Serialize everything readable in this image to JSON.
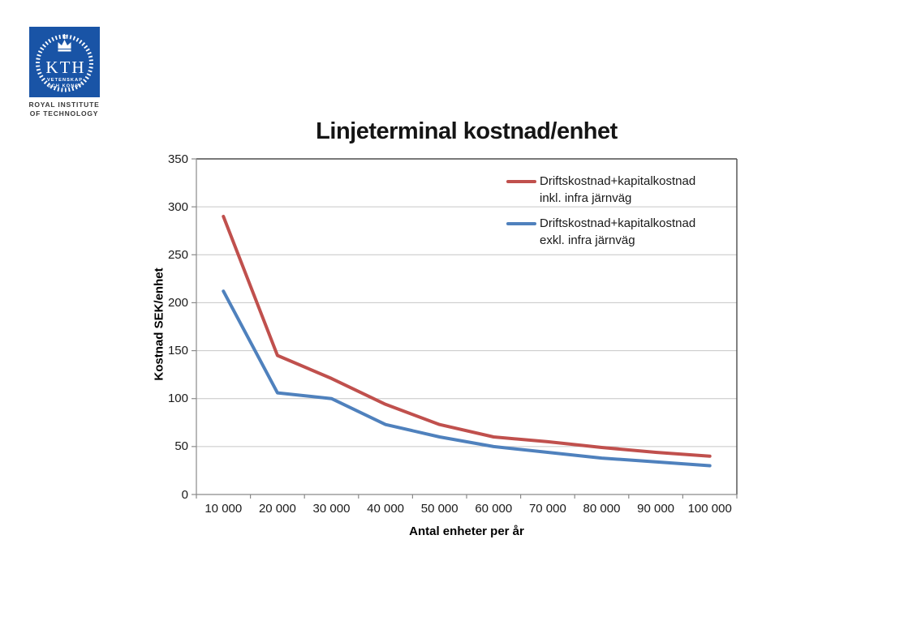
{
  "logo": {
    "brand_color": "#1954A6",
    "kth": "KTH",
    "motto_line1": "VETENSKAP",
    "motto_line2": "OCH KONST",
    "institute_line1": "ROYAL INSTITUTE",
    "institute_line2": "OF TECHNOLOGY"
  },
  "chart_data": {
    "type": "line",
    "title": "Linjeterminal kostnad/enhet",
    "xlabel": "Antal enheter per år",
    "ylabel": "Kostnad SEK/enhet",
    "x_categories": [
      "10 000",
      "20 000",
      "30 000",
      "40 000",
      "50 000",
      "60 000",
      "70 000",
      "80 000",
      "90 000",
      "100 000"
    ],
    "ylim": [
      0,
      350
    ],
    "yticks": [
      0,
      50,
      100,
      150,
      200,
      250,
      300,
      350
    ],
    "grid": "horizontal",
    "legend_position": "upper-right-inside",
    "gridline_color": "#c6c6c6",
    "axis_color": "#8a8a8a",
    "border_color": "#4d4d4d",
    "series": [
      {
        "name": "Driftskostnad+kapitalkostnad inkl. infra järnväg",
        "label_line1": "Driftskostnad+kapitalkostnad",
        "label_line2": "inkl. infra järnväg",
        "color": "#C0504D",
        "values": [
          290,
          145,
          121,
          94,
          73,
          60,
          55,
          49,
          44,
          40
        ]
      },
      {
        "name": "Driftskostnad+kapitalkostnad exkl. infra järnväg",
        "label_line1": "Driftskostnad+kapitalkostnad",
        "label_line2": "exkl. infra järnväg",
        "color": "#4F81BD",
        "values": [
          212,
          106,
          100,
          73,
          60,
          50,
          44,
          38,
          34,
          30
        ]
      }
    ]
  }
}
